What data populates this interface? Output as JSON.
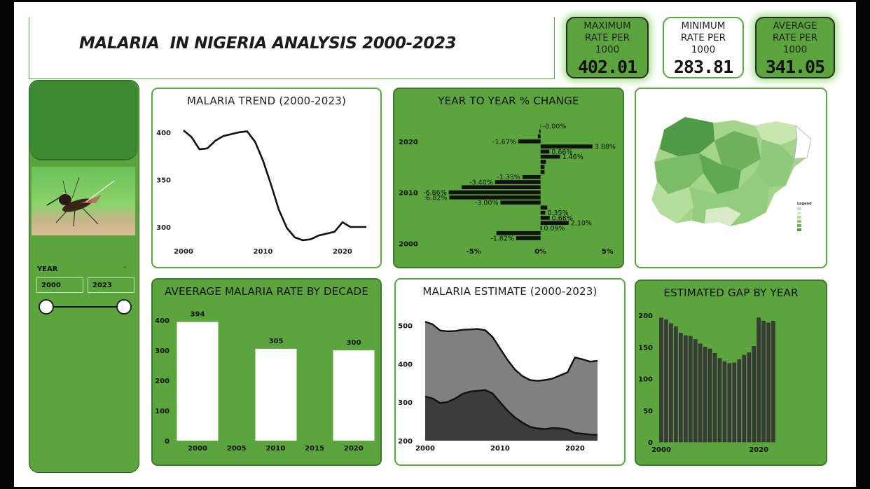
{
  "header": {
    "title": "MALARIA  IN NIGERIA ANALYSIS 2000-2023"
  },
  "kpis": [
    {
      "label_lines": [
        "MAXIMUM",
        "RATE PER",
        "1000"
      ],
      "value": "402.01"
    },
    {
      "label_lines": [
        "MINIMUM",
        "RATE PER",
        "1000"
      ],
      "value": "283.81"
    },
    {
      "label_lines": [
        "AVERAGE",
        "RATE PER",
        "1000"
      ],
      "value": "341.05"
    }
  ],
  "sidebar": {
    "slicer_label": "YEAR",
    "start_year": "2000",
    "end_year": "2023",
    "slider_range": [
      2000,
      2023
    ]
  },
  "colors": {
    "green": "#5ca43e",
    "dark": "#1a1a1a",
    "grey": "#808080",
    "darkgrey": "#3c3c3c"
  },
  "map": {
    "legend_title": "Legend"
  },
  "chart_data": [
    {
      "id": "trend",
      "type": "line",
      "title": "MALARIA TREND (2000-2023)",
      "x": [
        2000,
        2001,
        2002,
        2003,
        2004,
        2005,
        2006,
        2007,
        2008,
        2009,
        2010,
        2011,
        2012,
        2013,
        2014,
        2015,
        2016,
        2017,
        2018,
        2019,
        2020,
        2021,
        2022,
        2023
      ],
      "values": [
        402,
        395,
        382,
        383,
        391,
        396,
        398,
        400,
        401,
        390,
        370,
        345,
        318,
        299,
        289,
        286,
        287,
        291,
        293,
        295,
        305,
        300,
        300,
        300
      ],
      "xticks": [
        "2000",
        "2010",
        "2020"
      ],
      "yticks": [
        "300",
        "350",
        "400"
      ],
      "ylim": [
        283,
        405
      ]
    },
    {
      "id": "yoy",
      "type": "bar",
      "orientation": "horizontal",
      "title": "YEAR TO YEAR % CHANGE",
      "years": [
        2001,
        2002,
        2003,
        2004,
        2005,
        2006,
        2007,
        2008,
        2009,
        2010,
        2011,
        2012,
        2013,
        2014,
        2015,
        2016,
        2017,
        2018,
        2019,
        2020,
        2021,
        2022,
        2023
      ],
      "values": [
        -1.82,
        -3.3,
        0.09,
        2.1,
        0.68,
        0.35,
        0.5,
        -3.0,
        -6.82,
        -6.86,
        -5.9,
        -3.4,
        -1.35,
        0.3,
        0.3,
        0.4,
        1.46,
        0.66,
        3.88,
        -1.67,
        -0.2,
        -0.1,
        -0.0
      ],
      "labels": {
        "2001": "-1.82%",
        "2003": "0.09%",
        "2004": "2.10%",
        "2005": "0.68%",
        "2006": "0.35%",
        "2008": "-3.00%",
        "2009": "-6.82%",
        "2010": "-6.86%",
        "2012": "-3.40%",
        "2013": "-1.35%",
        "2017": "1.46%",
        "2018": "0.66%",
        "2019": "3.88%",
        "2020": "-1.67%",
        "2023": "-0.00%"
      },
      "xticks": [
        "-5%",
        "0%",
        "5%"
      ],
      "yticks": [
        "2000",
        "2010",
        "2020"
      ],
      "xlim": [
        -7.0,
        5.2
      ]
    },
    {
      "id": "decade",
      "type": "bar",
      "title": "AVEERAGE MALARIA RATE BY DECADE",
      "categories": [
        "2000",
        "2010",
        "2020"
      ],
      "values": [
        394,
        305,
        300
      ],
      "xticks": [
        "2000",
        "2005",
        "2010",
        "2015",
        "2020"
      ],
      "yticks": [
        "0",
        "100",
        "200",
        "300",
        "400"
      ],
      "ylim": [
        0,
        400
      ]
    },
    {
      "id": "estimate",
      "type": "area",
      "title": "MALARIA ESTIMATE (2000-2023)",
      "x": [
        2000,
        2001,
        2002,
        2003,
        2004,
        2005,
        2006,
        2007,
        2008,
        2009,
        2010,
        2011,
        2012,
        2013,
        2014,
        2015,
        2016,
        2017,
        2018,
        2019,
        2020,
        2021,
        2022,
        2023
      ],
      "series": [
        {
          "values": [
            510,
            503,
            487,
            485,
            486,
            489,
            490,
            491,
            488,
            470,
            440,
            410,
            385,
            368,
            358,
            356,
            358,
            362,
            370,
            378,
            417,
            412,
            406,
            408
          ]
        },
        {
          "values": [
            315,
            310,
            298,
            301,
            310,
            322,
            328,
            330,
            332,
            323,
            300,
            278,
            260,
            247,
            236,
            232,
            230,
            233,
            232,
            229,
            220,
            218,
            216,
            215
          ]
        }
      ],
      "xticks": [
        "2000",
        "2010",
        "2020"
      ],
      "yticks": [
        "200",
        "300",
        "400",
        "500"
      ],
      "ylim": [
        200,
        525
      ]
    },
    {
      "id": "gap",
      "type": "bar",
      "title": "ESTIMATED GAP BY YEAR",
      "x": [
        2000,
        2001,
        2002,
        2003,
        2004,
        2005,
        2006,
        2007,
        2008,
        2009,
        2010,
        2011,
        2012,
        2013,
        2014,
        2015,
        2016,
        2017,
        2018,
        2019,
        2020,
        2021,
        2022,
        2023
      ],
      "values": [
        196,
        193,
        187,
        182,
        172,
        168,
        167,
        162,
        155,
        150,
        147,
        140,
        132,
        127,
        124,
        125,
        130,
        137,
        141,
        151,
        196,
        191,
        188,
        191
      ],
      "xticks": [
        "2000",
        "2020"
      ],
      "yticks": [
        "0",
        "50",
        "100",
        "150",
        "200"
      ],
      "ylim": [
        0,
        210
      ]
    }
  ]
}
